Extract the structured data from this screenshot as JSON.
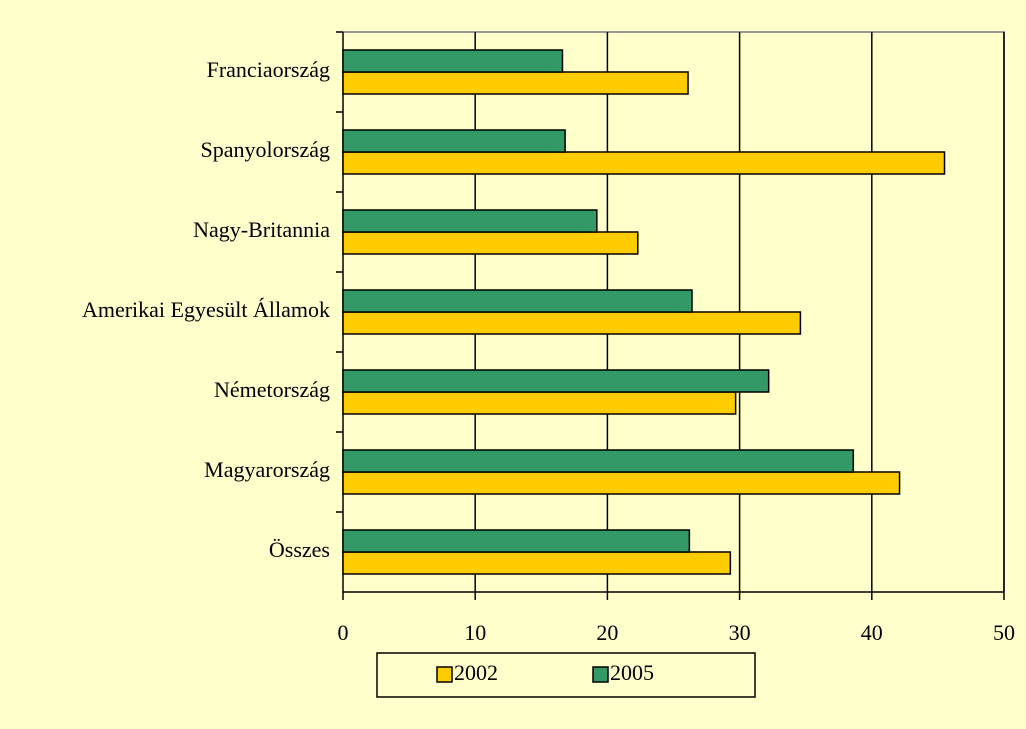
{
  "chart_data": {
    "type": "barh",
    "categories": [
      "Franciaország",
      "Spanyolország",
      "Nagy-Britannia",
      "Amerikai Egyesült Államok",
      "Németország",
      "Magyarország",
      "Összes"
    ],
    "series": [
      {
        "name": "2002",
        "color": "#ffcc00",
        "values": [
          26.1,
          45.5,
          22.3,
          34.6,
          29.7,
          42.1,
          29.3
        ]
      },
      {
        "name": "2005",
        "color": "#339966",
        "values": [
          16.6,
          16.8,
          19.2,
          26.4,
          32.2,
          38.6,
          26.2
        ]
      }
    ],
    "xlim": [
      0,
      50
    ],
    "xticks": [
      0,
      10,
      20,
      30,
      40,
      50
    ],
    "grid": true,
    "legend": "bottom"
  }
}
